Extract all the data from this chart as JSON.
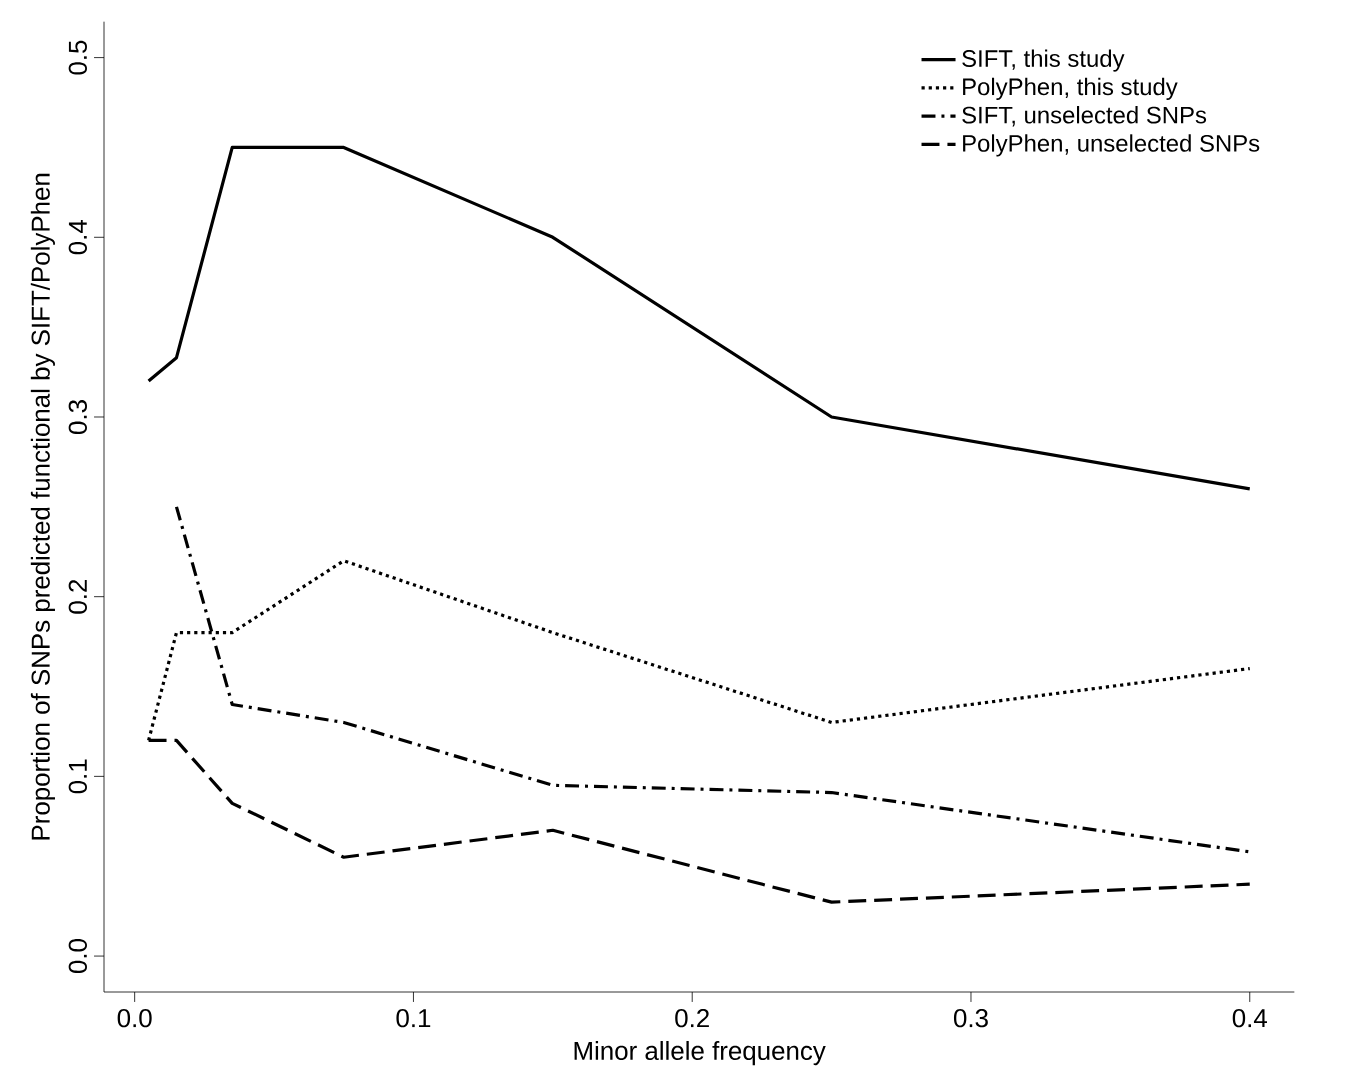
{
  "chart_data": {
    "type": "line",
    "xlabel": "Minor allele frequency",
    "ylabel": "Proportion of SNPs predicted functional by SIFT/PolyPhen",
    "xlim": [
      -0.011,
      0.416
    ],
    "ylim": [
      -0.02,
      0.52
    ],
    "xticks": [
      {
        "value": 0,
        "label": "0.0"
      },
      0.1,
      0.2,
      0.3,
      0.4
    ],
    "yticks": [
      {
        "value": 0,
        "label": "0.0"
      },
      0.1,
      0.2,
      0.3,
      0.4,
      0.5
    ],
    "grid": false,
    "legend": "top right",
    "marker": "none",
    "series": [
      {
        "name": "SIFT, this study",
        "color": "#000000",
        "line_style": "solid",
        "x": [
          0.005,
          0.015,
          0.035,
          0.075,
          0.15,
          0.25,
          0.4
        ],
        "values": [
          0.32,
          0.333,
          0.45,
          0.45,
          0.4,
          0.3,
          0.26
        ]
      },
      {
        "name": "PolyPhen, this study",
        "color": "#000000",
        "line_style": "dotted",
        "x": [
          0.005,
          0.015,
          0.035,
          0.075,
          0.15,
          0.25,
          0.4
        ],
        "values": [
          0.12,
          0.18,
          0.18,
          0.22,
          0.18,
          0.13,
          0.16
        ]
      },
      {
        "name": "SIFT, unselected SNPs",
        "color": "#000000",
        "line_style": "dashdot",
        "x": [
          0.015,
          0.035,
          0.075,
          0.15,
          0.25,
          0.4
        ],
        "values": [
          0.25,
          0.14,
          0.13,
          0.095,
          0.091,
          0.058
        ]
      },
      {
        "name": "PolyPhen, unselected SNPs",
        "color": "#000000",
        "line_style": "dashed",
        "x": [
          0.005,
          0.015,
          0.035,
          0.075,
          0.15,
          0.25,
          0.4
        ],
        "values": [
          0.12,
          0.12,
          0.085,
          0.055,
          0.07,
          0.03,
          0.04
        ]
      }
    ]
  }
}
